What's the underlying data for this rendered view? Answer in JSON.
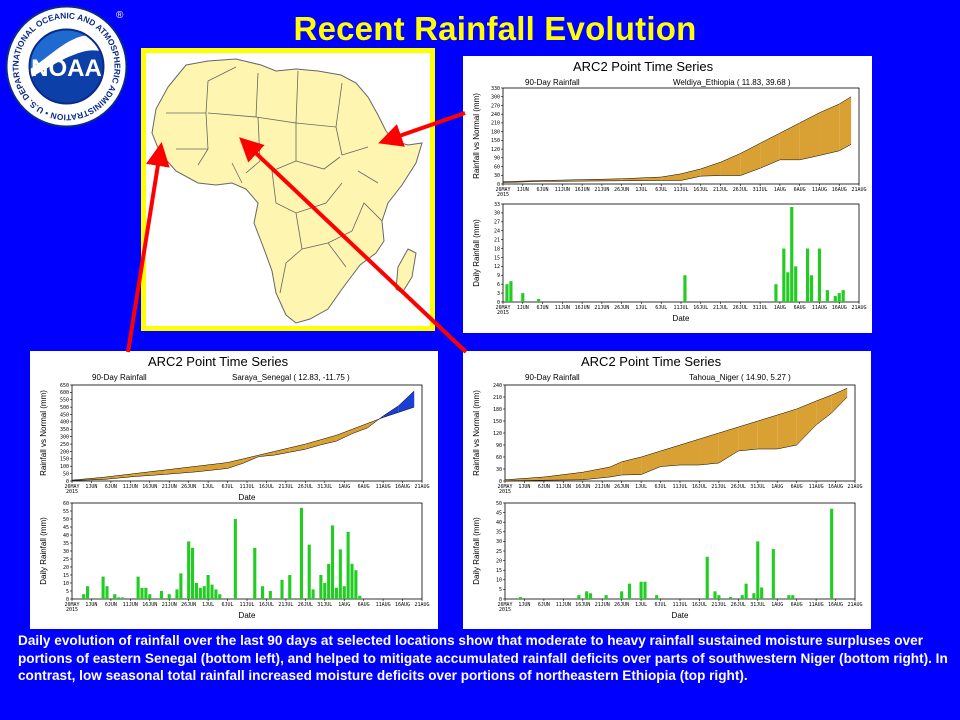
{
  "page": {
    "title": "Recent Rainfall Evolution",
    "caption": "Daily evolution of rainfall over the last 90 days at selected locations show that moderate to heavy rainfall sustained moisture surpluses over portions of eastern Senegal (bottom left), and helped to mitigate accumulated rainfall deficits over parts of southwestern Niger (bottom right). In contrast, low seasonal total rainfall increased moisture deficits over portions of northeastern Ethiopia (top right)."
  },
  "logo": {
    "center_text": "NOAA",
    "ring_text": "NATIONAL OCEANIC AND ATMOSPHERIC ADMINISTRATION • U.S. DEPARTMENT OF COMMERCE •",
    "registered": "®"
  },
  "colors": {
    "background": "#0000ff",
    "title": "#ffff00",
    "map_frame": "#ffff00",
    "land": "#fdf5b0",
    "surplus": "#1a3fd6",
    "deficit": "#d9a033",
    "daily_bar": "#22cc22",
    "arrow": "#ff0000"
  },
  "chart_data": [
    {
      "type": "area",
      "panel": "ethiopia",
      "header": "ARC2 Point Time Series",
      "subtitle": "90-Day Rainfall",
      "location": "Weldiya_Ethiopia ( 11.83, 39.68 )",
      "ylabel": "Rainfall vs Normal (mm)",
      "x_ticks": [
        "26MAY\n2015",
        "1JUN",
        "6JUN",
        "11JUN",
        "16JUN",
        "21JUN",
        "26JUN",
        "1JUL",
        "6JUL",
        "11JUL",
        "16JUL",
        "21JUL",
        "26JUL",
        "31JUL",
        "1AUG",
        "6AUG",
        "11AUG",
        "16AUG",
        "21AUG"
      ],
      "y_ticks": [
        0,
        30,
        60,
        90,
        120,
        150,
        180,
        210,
        240,
        270,
        300,
        330
      ],
      "ylim": [
        0,
        330
      ],
      "x": [
        0,
        10,
        20,
        30,
        40,
        45,
        50,
        55,
        60,
        65,
        70,
        75,
        80,
        85,
        88
      ],
      "observed": [
        5,
        9,
        10,
        11,
        12,
        12,
        27,
        29,
        29,
        54,
        83,
        83,
        98,
        114,
        136
      ],
      "normal": [
        8,
        12,
        15,
        18,
        24,
        35,
        52,
        75,
        105,
        140,
        175,
        210,
        245,
        275,
        300
      ]
    },
    {
      "type": "bar",
      "panel": "ethiopia",
      "xlabel": "Date",
      "ylabel": "Daily Rainfall (mm)",
      "x_ticks": [
        "26MAY\n2015",
        "1JUN",
        "6JUN",
        "11JUN",
        "16JUN",
        "21JUN",
        "26JUN",
        "1JUL",
        "6JUL",
        "11JUL",
        "16JUL",
        "21JUL",
        "26JUL",
        "31JUL",
        "1AUG",
        "6AUG",
        "11AUG",
        "16AUG",
        "21AUG"
      ],
      "y_ticks": [
        0,
        3,
        6,
        9,
        12,
        15,
        18,
        21,
        24,
        27,
        30,
        33
      ],
      "ylim": [
        0,
        33
      ],
      "bars": [
        [
          1,
          6
        ],
        [
          2,
          7
        ],
        [
          5,
          3
        ],
        [
          9,
          1
        ],
        [
          46,
          9
        ],
        [
          69,
          6
        ],
        [
          71,
          18
        ],
        [
          72,
          10
        ],
        [
          73,
          32
        ],
        [
          74,
          12
        ],
        [
          77,
          18
        ],
        [
          78,
          9
        ],
        [
          80,
          18
        ],
        [
          82,
          4
        ],
        [
          84,
          2
        ],
        [
          85,
          3
        ],
        [
          86,
          4
        ]
      ]
    },
    {
      "type": "area",
      "panel": "senegal",
      "header": "ARC2 Point Time Series",
      "subtitle": "90-Day Rainfall",
      "location": "Saraya_Senegal ( 12.83, -11.75 )",
      "ylabel": "Rainfall vs Normal (mm)",
      "xlabel": "Date",
      "x_ticks": [
        "26MAY\n2015",
        "1JUN",
        "6JUN",
        "11JUN",
        "16JUN",
        "21JUN",
        "26JUN",
        "1JUL",
        "6JUL",
        "11JUL",
        "16JUL",
        "21JUL",
        "26JUL",
        "31JUL",
        "1AUG",
        "6AUG",
        "11AUG",
        "16AUG",
        "21AUG"
      ],
      "y_ticks": [
        0,
        50,
        100,
        150,
        200,
        250,
        300,
        350,
        400,
        450,
        500,
        550,
        600,
        650
      ],
      "ylim": [
        0,
        650
      ],
      "x": [
        0,
        8,
        16,
        24,
        32,
        40,
        44,
        48,
        52,
        56,
        60,
        64,
        68,
        72,
        76,
        80,
        84,
        88
      ],
      "observed": [
        4,
        10,
        30,
        45,
        62,
        85,
        120,
        165,
        175,
        195,
        215,
        245,
        270,
        320,
        360,
        440,
        510,
        610
      ],
      "normal": [
        6,
        25,
        50,
        75,
        100,
        125,
        150,
        175,
        200,
        225,
        250,
        280,
        310,
        350,
        390,
        430,
        465,
        500
      ]
    },
    {
      "type": "bar",
      "panel": "senegal",
      "xlabel": "Date",
      "ylabel": "Daily Rainfall (mm)",
      "x_ticks": [
        "26MAY\n2015",
        "1JUN",
        "6JUN",
        "11JUN",
        "16JUN",
        "21JUN",
        "26JUN",
        "1JUL",
        "6JUL",
        "11JUL",
        "16JUL",
        "21JUL",
        "26JUL",
        "31JUL",
        "1AUG",
        "6AUG",
        "11AUG",
        "16AUG",
        "21AUG"
      ],
      "y_ticks": [
        0,
        5,
        10,
        15,
        20,
        25,
        30,
        35,
        40,
        45,
        50,
        55,
        60
      ],
      "ylim": [
        0,
        60
      ],
      "bars": [
        [
          3,
          3
        ],
        [
          4,
          8
        ],
        [
          8,
          14
        ],
        [
          9,
          8
        ],
        [
          11,
          3
        ],
        [
          12,
          1
        ],
        [
          13,
          1
        ],
        [
          17,
          14
        ],
        [
          18,
          7
        ],
        [
          19,
          7
        ],
        [
          20,
          3
        ],
        [
          23,
          5
        ],
        [
          25,
          3
        ],
        [
          27,
          6
        ],
        [
          28,
          16
        ],
        [
          30,
          36
        ],
        [
          31,
          32
        ],
        [
          32,
          10
        ],
        [
          33,
          7
        ],
        [
          34,
          8
        ],
        [
          35,
          15
        ],
        [
          36,
          9
        ],
        [
          37,
          6
        ],
        [
          38,
          3
        ],
        [
          42,
          50
        ],
        [
          47,
          32
        ],
        [
          49,
          8
        ],
        [
          51,
          5
        ],
        [
          54,
          12
        ],
        [
          56,
          15
        ],
        [
          59,
          57
        ],
        [
          61,
          34
        ],
        [
          62,
          6
        ],
        [
          64,
          15
        ],
        [
          65,
          10
        ],
        [
          66,
          22
        ],
        [
          67,
          46
        ],
        [
          68,
          7
        ],
        [
          69,
          31
        ],
        [
          70,
          8
        ],
        [
          71,
          42
        ],
        [
          72,
          22
        ],
        [
          73,
          18
        ],
        [
          74,
          2
        ]
      ]
    },
    {
      "type": "area",
      "panel": "niger",
      "header": "ARC2 Point Time Series",
      "subtitle": "90-Day Rainfall",
      "location": "Tahoua_Niger ( 14.90, 5.27 )",
      "ylabel": "Rainfall vs Normal (mm)",
      "x_ticks": [
        "26MAY\n2015",
        "1JUN",
        "6JUN",
        "11JUN",
        "16JUN",
        "21JUN",
        "26JUN",
        "1JUL",
        "6JUL",
        "11JUL",
        "16JUL",
        "21JUL",
        "26JUL",
        "31JUL",
        "1AUG",
        "6AUG",
        "11AUG",
        "16AUG",
        "21AUG"
      ],
      "y_ticks": [
        0,
        30,
        60,
        90,
        120,
        150,
        180,
        210,
        240
      ],
      "ylim": [
        0,
        240
      ],
      "x": [
        0,
        10,
        20,
        27,
        30,
        35,
        40,
        45,
        50,
        55,
        60,
        65,
        70,
        75,
        80,
        84,
        88
      ],
      "observed": [
        0,
        2,
        3,
        10,
        15,
        16,
        36,
        40,
        40,
        45,
        75,
        80,
        80,
        90,
        140,
        170,
        210
      ],
      "normal": [
        3,
        10,
        22,
        35,
        48,
        60,
        75,
        90,
        105,
        120,
        135,
        150,
        165,
        180,
        200,
        215,
        232
      ]
    },
    {
      "type": "bar",
      "panel": "niger",
      "xlabel": "Date",
      "ylabel": "Daily Rainfall (mm)",
      "x_ticks": [
        "26MAY\n2015",
        "1JUN",
        "6JUN",
        "11JUN",
        "16JUN",
        "21JUN",
        "26JUN",
        "1JUL",
        "6JUL",
        "11JUL",
        "16JUL",
        "21JUL",
        "26JUL",
        "31JUL",
        "1AUG",
        "6AUG",
        "11AUG",
        "16AUG",
        "21AUG"
      ],
      "y_ticks": [
        0,
        5,
        10,
        15,
        20,
        25,
        30,
        35,
        40,
        45,
        50
      ],
      "ylim": [
        0,
        50
      ],
      "bars": [
        [
          4,
          1
        ],
        [
          19,
          2
        ],
        [
          21,
          4
        ],
        [
          22,
          3
        ],
        [
          26,
          2
        ],
        [
          30,
          4
        ],
        [
          32,
          8
        ],
        [
          35,
          9
        ],
        [
          36,
          9
        ],
        [
          39,
          2
        ],
        [
          52,
          22
        ],
        [
          54,
          4
        ],
        [
          55,
          2
        ],
        [
          58,
          1
        ],
        [
          61,
          2
        ],
        [
          62,
          8
        ],
        [
          64,
          3
        ],
        [
          65,
          30
        ],
        [
          66,
          6
        ],
        [
          69,
          26
        ],
        [
          73,
          2
        ],
        [
          74,
          2
        ],
        [
          84,
          47
        ]
      ]
    }
  ]
}
